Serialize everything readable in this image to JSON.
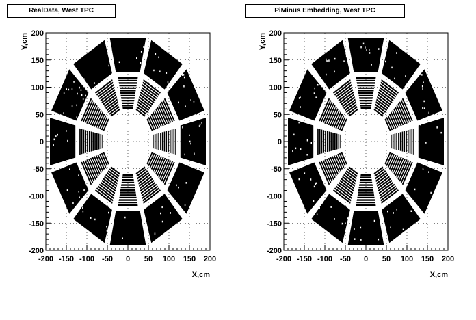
{
  "colors": {
    "sector": "#000000",
    "background": "#ffffff",
    "grid": "#000000"
  },
  "chart_data": [
    {
      "type": "scatter",
      "title": "RealData, West TPC",
      "xlabel": "X,cm",
      "ylabel": "Y,cm",
      "xlim": [
        -200,
        200
      ],
      "ylim": [
        -200,
        200
      ],
      "xticks": [
        -200,
        -150,
        -100,
        -50,
        0,
        50,
        100,
        150,
        200
      ],
      "yticks": [
        -200,
        -150,
        -100,
        -50,
        0,
        50,
        100,
        150,
        200
      ],
      "grid": true,
      "legend": "none",
      "geometry": {
        "sectors": 12,
        "inner_radius_range": [
          60,
          120
        ],
        "outer_radius_range": [
          128,
          190
        ],
        "inner_pad_rows": 13
      }
    },
    {
      "type": "scatter",
      "title": "PiMinus Embedding, West TPC",
      "xlabel": "X,cm",
      "ylabel": "Y,cm",
      "xlim": [
        -200,
        200
      ],
      "ylim": [
        -200,
        200
      ],
      "xticks": [
        -200,
        -150,
        -100,
        -50,
        0,
        50,
        100,
        150,
        200
      ],
      "yticks": [
        -200,
        -150,
        -100,
        -50,
        0,
        50,
        100,
        150,
        200
      ],
      "grid": true,
      "legend": "none",
      "geometry": {
        "sectors": 12,
        "inner_radius_range": [
          60,
          120
        ],
        "outer_radius_range": [
          128,
          190
        ],
        "inner_pad_rows": 13
      }
    }
  ]
}
